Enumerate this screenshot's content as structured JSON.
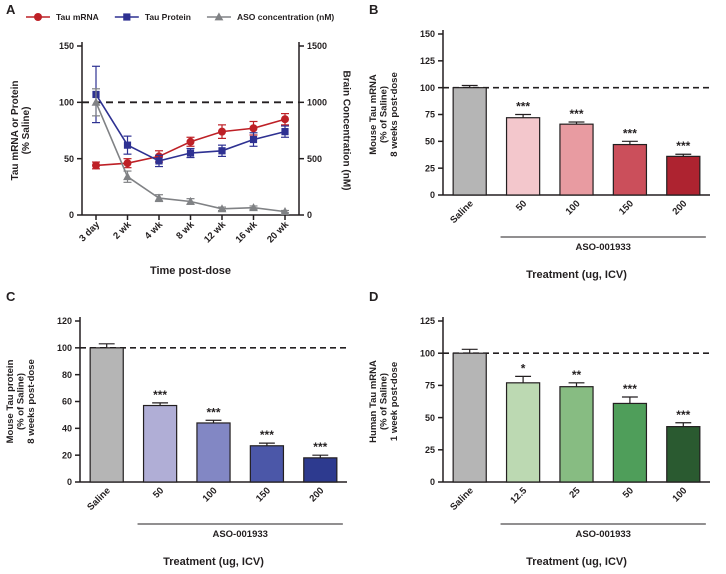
{
  "figure": {
    "panels": [
      {
        "label": "A"
      },
      {
        "label": "B"
      },
      {
        "label": "C"
      },
      {
        "label": "D"
      }
    ]
  },
  "colors": {
    "tau_mrna": "#be2026",
    "tau_protein": "#2e3192",
    "aso_concentration": "#808285",
    "saline_bar": "#b5b5b5",
    "axis": "#231f20"
  },
  "chart_data": [
    {
      "id": "A",
      "type": "line",
      "categories": [
        "3 day",
        "2 wk",
        "4 wk",
        "8 wk",
        "12 wk",
        "16 wk",
        "20 wk"
      ],
      "xlabel": "Time post-dose",
      "ylabel_left": "Tau mRNA or Protein\n(% Saline)",
      "ylabel_right": "Brain Concentration (nM)",
      "ylim_left": [
        0,
        150
      ],
      "yticks_left": [
        0,
        50,
        100,
        150
      ],
      "ylim_right": [
        0,
        1500
      ],
      "yticks_right": [
        0,
        500,
        1000,
        1500
      ],
      "dashed_line_left": 100,
      "legend_position": "top",
      "grid": false,
      "series": [
        {
          "name": "Tau mRNA",
          "axis": "left",
          "color": "#be2026",
          "marker": "circle",
          "values": [
            44,
            46,
            52,
            65,
            74,
            77,
            85
          ],
          "errors": [
            3,
            4,
            5,
            4,
            6,
            6,
            5
          ]
        },
        {
          "name": "Tau Protein",
          "axis": "left",
          "color": "#2e3192",
          "marker": "square",
          "values": [
            107,
            62,
            48,
            55,
            57,
            67,
            74
          ],
          "errors": [
            25,
            8,
            5,
            4,
            5,
            6,
            5
          ]
        },
        {
          "name": "ASO concentration (nM)",
          "axis": "right",
          "color": "#808285",
          "marker": "triangle",
          "values": [
            1000,
            340,
            150,
            120,
            55,
            65,
            30
          ],
          "errors": [
            120,
            50,
            30,
            25,
            15,
            15,
            10
          ]
        }
      ]
    },
    {
      "id": "B",
      "type": "bar",
      "categories": [
        "Saline",
        "50",
        "100",
        "150",
        "200"
      ],
      "values": [
        100,
        72,
        66,
        47,
        36
      ],
      "errors": [
        2,
        3,
        2,
        3,
        2
      ],
      "significance": [
        "",
        "***",
        "***",
        "***",
        "***"
      ],
      "bar_colors": [
        "#b5b5b5",
        "#f3c7cc",
        "#e89ba1",
        "#cb4f5b",
        "#ae2330"
      ],
      "ylabel": "Mouse Tau mRNA\n(% of Saline)\n8 weeks post-dose",
      "xlabel": "Treatment (ug, ICV)",
      "group_label": "ASO-001933",
      "group_span": [
        1,
        4
      ],
      "ylim": [
        0,
        150
      ],
      "yticks": [
        0,
        25,
        50,
        75,
        100,
        125,
        150
      ],
      "dashed_line": 100,
      "grid": false
    },
    {
      "id": "C",
      "type": "bar",
      "categories": [
        "Saline",
        "50",
        "100",
        "150",
        "200"
      ],
      "values": [
        100,
        57,
        44,
        27,
        18
      ],
      "errors": [
        3,
        2,
        2,
        2,
        2
      ],
      "significance": [
        "",
        "***",
        "***",
        "***",
        "***"
      ],
      "bar_colors": [
        "#b5b5b5",
        "#b0aed6",
        "#8287c4",
        "#4b57a8",
        "#2d3a8f"
      ],
      "ylabel": "Mouse Tau protein\n(% of Saline)\n8 weeks post-dose",
      "xlabel": "Treatment (ug, ICV)",
      "group_label": "ASO-001933",
      "group_span": [
        1,
        4
      ],
      "ylim": [
        0,
        120
      ],
      "yticks": [
        0,
        20,
        40,
        60,
        80,
        100,
        120
      ],
      "dashed_line": 100,
      "grid": false
    },
    {
      "id": "D",
      "type": "bar",
      "categories": [
        "Saline",
        "12.5",
        "25",
        "50",
        "100"
      ],
      "values": [
        100,
        77,
        74,
        61,
        43
      ],
      "errors": [
        3,
        5,
        3,
        5,
        3
      ],
      "significance": [
        "",
        "*",
        "**",
        "***",
        "***"
      ],
      "bar_colors": [
        "#b5b5b5",
        "#bcd9b2",
        "#87bc82",
        "#4f9e5a",
        "#2a5a30"
      ],
      "ylabel": "Human Tau mRNA\n(% of Saline)\n1 week post-dose",
      "xlabel": "Treatment (ug, ICV)",
      "group_label": "ASO-001933",
      "group_span": [
        1,
        4
      ],
      "ylim": [
        0,
        125
      ],
      "yticks": [
        0,
        25,
        50,
        75,
        100,
        125
      ],
      "dashed_line": 100,
      "grid": false
    }
  ]
}
